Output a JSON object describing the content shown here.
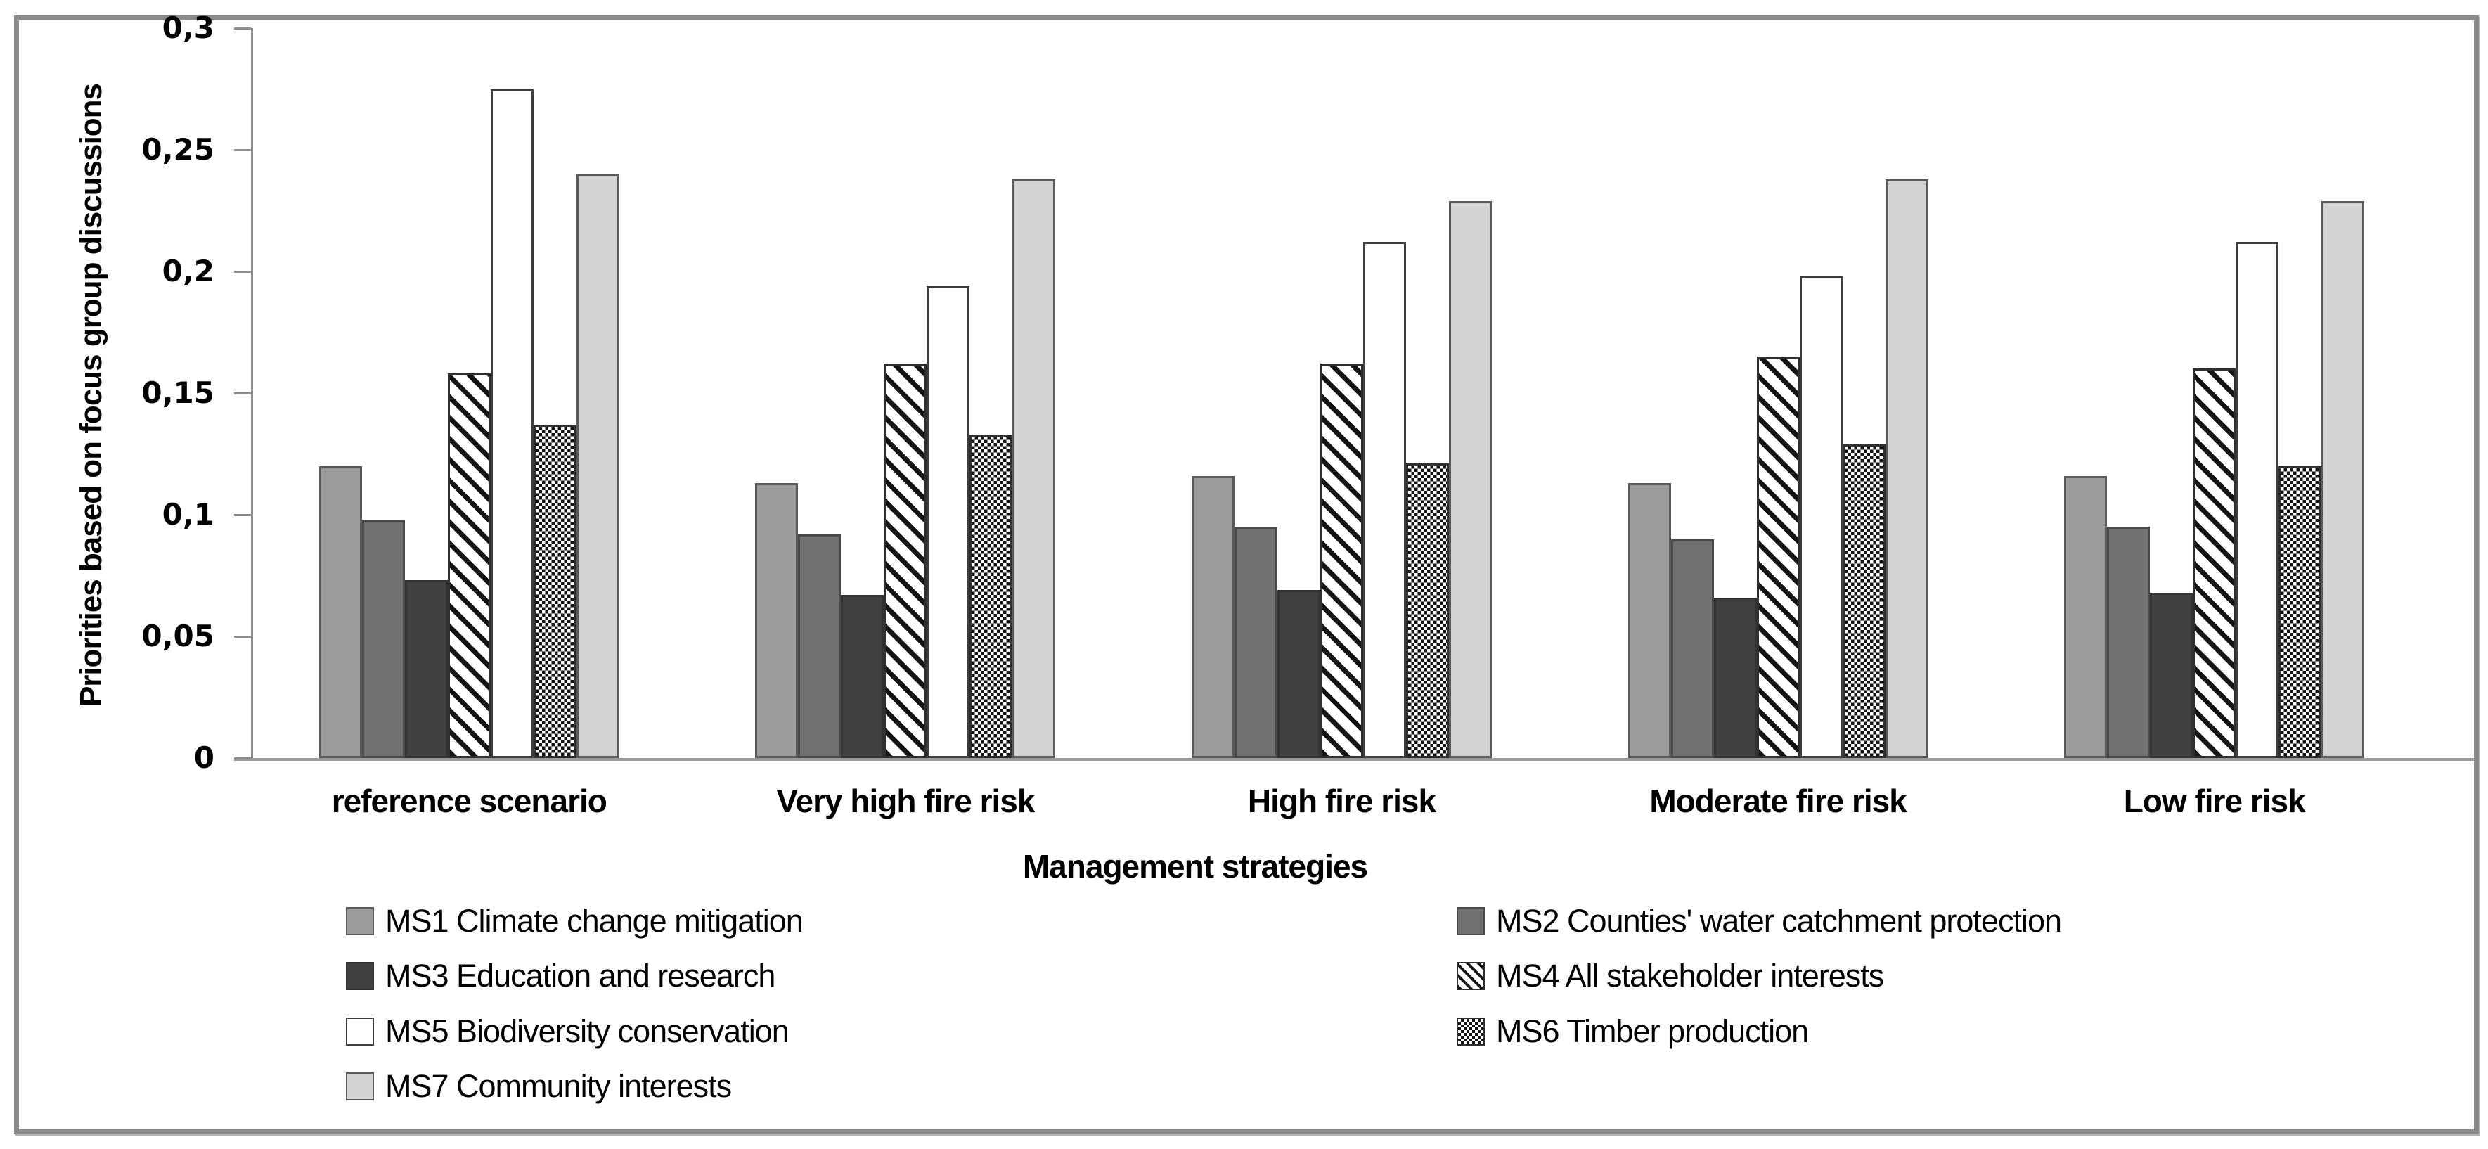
{
  "page": {
    "background": "#ffffff",
    "frame_color": "#8a8a8a"
  },
  "chart_data": {
    "type": "bar",
    "title": "",
    "xlabel": "Management strategies",
    "ylabel": "Priorities based on focus group discussions",
    "categories": [
      "reference scenario",
      "Very high fire risk",
      "High fire risk",
      "Moderate fire risk",
      "Low fire risk"
    ],
    "series": [
      {
        "name": "MS1 Climate change mitigation",
        "pattern": "solid",
        "fill": "#9c9c9c",
        "stroke": "#5a5a5a",
        "values": [
          0.12,
          0.113,
          0.116,
          0.113,
          0.116
        ]
      },
      {
        "name": "MS2 Counties' water catchment protection",
        "pattern": "solid",
        "fill": "#717171",
        "stroke": "#4a4a4a",
        "values": [
          0.098,
          0.092,
          0.095,
          0.09,
          0.095
        ]
      },
      {
        "name": "MS3 Education and research",
        "pattern": "solid",
        "fill": "#404040",
        "stroke": "#333333",
        "values": [
          0.073,
          0.067,
          0.069,
          0.066,
          0.068
        ]
      },
      {
        "name": "MS4 All stakeholder interests",
        "pattern": "diagonal-hatch",
        "fill": "#ffffff",
        "stroke": "#2f2f2f",
        "pattern_color": "#141414",
        "values": [
          0.158,
          0.162,
          0.162,
          0.165,
          0.16
        ]
      },
      {
        "name": "MS5 Biodiversity conservation",
        "pattern": "solid",
        "fill": "#ffffff",
        "stroke": "#3d3d3d",
        "values": [
          0.275,
          0.194,
          0.212,
          0.198,
          0.212
        ]
      },
      {
        "name": "MS6 Timber production",
        "pattern": "checkerboard",
        "fill": "#ffffff",
        "stroke": "#2f2f2f",
        "pattern_color": "#141414",
        "values": [
          0.137,
          0.133,
          0.121,
          0.129,
          0.12
        ]
      },
      {
        "name": "MS7 Community interests",
        "pattern": "solid",
        "fill": "#d3d3d3",
        "stroke": "#5a5a5a",
        "values": [
          0.24,
          0.238,
          0.229,
          0.238,
          0.229
        ]
      }
    ],
    "y_axis": {
      "min": 0,
      "max": 0.3,
      "step": 0.05,
      "tick_labels": [
        "0",
        "0,05",
        "0,1",
        "0,15",
        "0,2",
        "0,25",
        "0,3"
      ],
      "decimal_separator": ","
    },
    "grid": false,
    "legend_position": "bottom, two columns",
    "colors": {
      "axis": "#8c8c8c",
      "baseline": "#9a9a9a",
      "text": "#000000"
    }
  }
}
